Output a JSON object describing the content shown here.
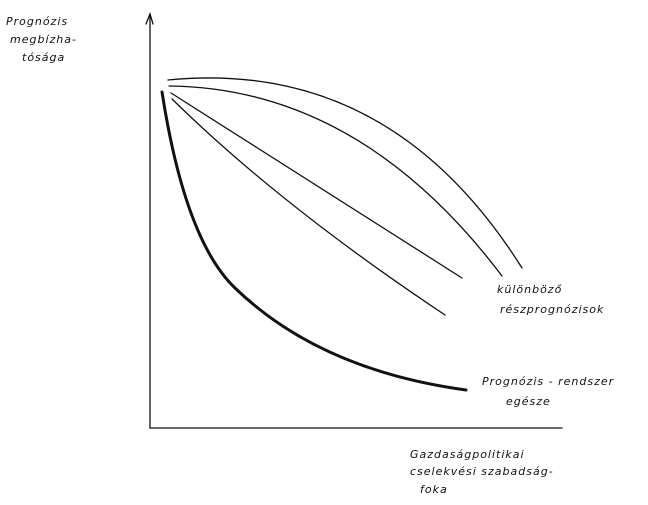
{
  "y_axis_label": {
    "lines": [
      "Prognózis",
      "megbízha-",
      "tósága"
    ]
  },
  "x_axis_label": {
    "lines": [
      "Gazdaságpolitikai",
      "cselekvési szabadság-",
      "foka"
    ]
  },
  "annotations": [
    {
      "lines": [
        "különböző",
        "részprognózisok"
      ]
    },
    {
      "lines": [
        "Prognózis - rendszer",
        "egésze"
      ]
    }
  ]
}
